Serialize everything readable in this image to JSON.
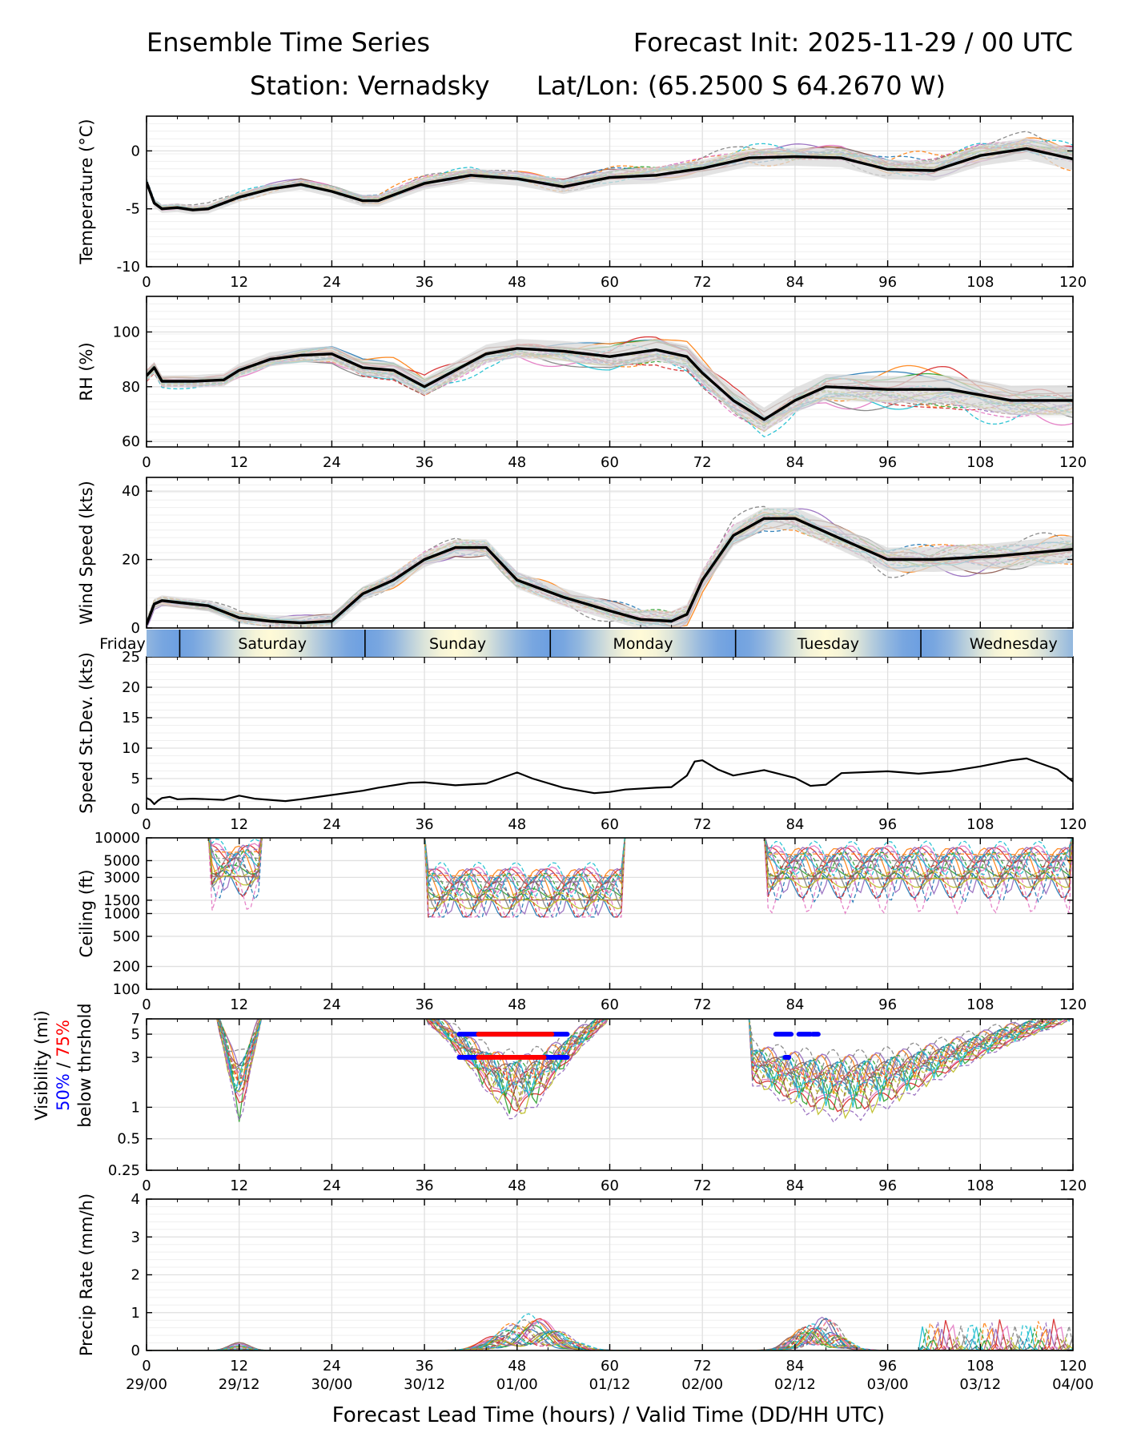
{
  "header": {
    "title_left": "Ensemble Time Series",
    "title_right": "Forecast Init: 2025-11-29 / 00 UTC",
    "station": "Station: Vernadsky",
    "latlon": "Lat/Lon: (65.2500 S 64.2670 W)"
  },
  "x_axis": {
    "lead_ticks": [
      "0",
      "12",
      "24",
      "36",
      "48",
      "60",
      "72",
      "84",
      "96",
      "108",
      "120"
    ],
    "valid_ticks": [
      "29/00",
      "29/12",
      "30/00",
      "30/12",
      "01/00",
      "01/12",
      "02/00",
      "02/12",
      "03/00",
      "03/12",
      "04/00"
    ],
    "label": "Forecast Lead Time (hours) / Valid Time (DD/HH UTC)",
    "range_hours": [
      0,
      120
    ]
  },
  "day_band": {
    "days": [
      "Friday",
      "Saturday",
      "Sunday",
      "Monday",
      "Tuesday",
      "Wednesday"
    ],
    "boundaries_hours": [
      4.3,
      28.3,
      52.3,
      76.3,
      100.3
    ]
  },
  "visibility_label": {
    "line1": "Visibility (mi)",
    "pct50": "50%",
    "sep": " / ",
    "pct75": "75%",
    "line3": "below thrshold"
  },
  "colors": {
    "mean": "#000000",
    "spread": "#d9d9d9",
    "grid": "#e0e0e0",
    "members": [
      "#1f77b4",
      "#ff7f0e",
      "#2ca02c",
      "#d62728",
      "#9467bd",
      "#8c564b",
      "#e377c2",
      "#7f7f7f",
      "#bcbd22",
      "#17becf"
    ],
    "pct50": "#0000ff",
    "pct75": "#ff0000"
  },
  "chart_data": [
    {
      "id": "temperature",
      "type": "line",
      "ylabel": "Temperature (°C)",
      "ylim": [
        -10,
        3
      ],
      "yticks": [
        -10,
        -5,
        0
      ],
      "n_members": 20,
      "mean_x": [
        0,
        1,
        2,
        4,
        6,
        8,
        10,
        12,
        16,
        20,
        24,
        28,
        30,
        36,
        42,
        48,
        54,
        60,
        66,
        72,
        78,
        84,
        90,
        96,
        102,
        108,
        114,
        120
      ],
      "mean_y": [
        -2.7,
        -4.5,
        -5.0,
        -4.9,
        -5.1,
        -5.0,
        -4.5,
        -4.0,
        -3.3,
        -2.9,
        -3.5,
        -4.3,
        -4.3,
        -2.8,
        -2.1,
        -2.4,
        -3.1,
        -2.3,
        -2.1,
        -1.5,
        -0.6,
        -0.5,
        -0.6,
        -1.6,
        -1.7,
        -0.4,
        0.2,
        -0.7
      ]
    },
    {
      "id": "rh",
      "type": "line",
      "ylabel": "RH (%)",
      "ylim": [
        58,
        113
      ],
      "yticks": [
        60,
        80,
        100
      ],
      "n_members": 20,
      "mean_x": [
        0,
        1,
        2,
        6,
        10,
        12,
        16,
        20,
        24,
        28,
        32,
        36,
        40,
        44,
        48,
        54,
        60,
        66,
        70,
        72,
        76,
        80,
        84,
        88,
        96,
        104,
        112,
        120
      ],
      "mean_y": [
        84,
        87,
        82,
        82,
        82.5,
        86,
        90,
        91.5,
        92,
        87,
        86,
        80,
        86,
        92,
        94,
        93,
        91,
        93.5,
        91,
        85,
        75,
        68,
        75,
        80,
        79,
        79,
        75,
        75
      ]
    },
    {
      "id": "wind_speed",
      "type": "line",
      "ylabel": "Wind Speed (kts)",
      "ylim": [
        0,
        44
      ],
      "yticks": [
        0,
        20,
        40
      ],
      "n_members": 20,
      "mean_x": [
        0,
        1,
        2,
        4,
        8,
        12,
        16,
        20,
        24,
        28,
        32,
        36,
        40,
        44,
        48,
        54,
        60,
        64,
        68,
        70,
        72,
        76,
        80,
        84,
        90,
        96,
        102,
        110,
        120
      ],
      "mean_y": [
        1,
        7,
        8,
        7.5,
        6.5,
        3,
        2,
        1.5,
        2,
        10,
        14,
        20,
        23.5,
        23.5,
        14,
        9,
        5,
        2.5,
        2,
        4,
        14,
        27,
        32,
        32,
        26,
        20,
        20,
        21,
        23
      ]
    },
    {
      "id": "speed_stdev",
      "type": "line",
      "ylabel": "Speed St.Dev. (kts)",
      "ylim": [
        0,
        25
      ],
      "yticks": [
        0,
        5,
        10,
        15,
        20,
        25
      ],
      "x": [
        0,
        0.5,
        1,
        1.5,
        2,
        3,
        4,
        6,
        8,
        10,
        12,
        14,
        18,
        20,
        24,
        28,
        30,
        34,
        36,
        40,
        44,
        48,
        50,
        54,
        58,
        60,
        62,
        66,
        68,
        70,
        71,
        72,
        74,
        76,
        80,
        84,
        86,
        88,
        90,
        96,
        100,
        104,
        108,
        112,
        114,
        118,
        120
      ],
      "y": [
        1.8,
        1.5,
        0.8,
        1.4,
        1.8,
        2.0,
        1.6,
        1.7,
        1.6,
        1.5,
        2.2,
        1.7,
        1.3,
        1.6,
        2.3,
        3.0,
        3.5,
        4.3,
        4.4,
        3.9,
        4.2,
        6.0,
        5.0,
        3.5,
        2.6,
        2.8,
        3.2,
        3.5,
        3.6,
        5.5,
        7.8,
        8.0,
        6.5,
        5.5,
        6.4,
        5.1,
        3.8,
        4.0,
        5.9,
        6.2,
        5.8,
        6.2,
        7.0,
        8.0,
        8.3,
        6.5,
        4.5
      ]
    },
    {
      "id": "ceiling",
      "type": "line",
      "ylabel": "Ceiling (ft)",
      "yscale": "log",
      "ylim": [
        100,
        10000
      ],
      "yticks": [
        100,
        200,
        500,
        1000,
        1500,
        3000,
        5000,
        10000
      ],
      "n_members": 20
    },
    {
      "id": "visibility",
      "type": "line",
      "yscale": "log",
      "ylim": [
        0.25,
        7
      ],
      "yticks": [
        0.25,
        0.5,
        1,
        3,
        5,
        7
      ],
      "n_members": 20,
      "threshold_bars": [
        {
          "level_mi": 5,
          "percentile": 50,
          "x": [
            40.5,
            54.5
          ]
        },
        {
          "level_mi": 5,
          "percentile": 75,
          "x": [
            43,
            52.5
          ]
        },
        {
          "level_mi": 3,
          "percentile": 50,
          "x": [
            40.5,
            54.5
          ]
        },
        {
          "level_mi": 3,
          "percentile": 75,
          "x": [
            43,
            51.5
          ]
        },
        {
          "level_mi": 5,
          "percentile": 50,
          "x": [
            81.5,
            83.5
          ]
        },
        {
          "level_mi": 5,
          "percentile": 50,
          "x": [
            84.5,
            86
          ]
        },
        {
          "level_mi": 5,
          "percentile": 50,
          "x": [
            86.3,
            87
          ]
        },
        {
          "level_mi": 3,
          "percentile": 50,
          "x": [
            82.7,
            83.2
          ]
        }
      ]
    },
    {
      "id": "precip_rate",
      "type": "line",
      "ylabel": "Precip Rate (mm/h)",
      "ylim": [
        0,
        4
      ],
      "yticks": [
        0,
        1,
        2,
        3,
        4
      ],
      "n_members": 20
    }
  ]
}
